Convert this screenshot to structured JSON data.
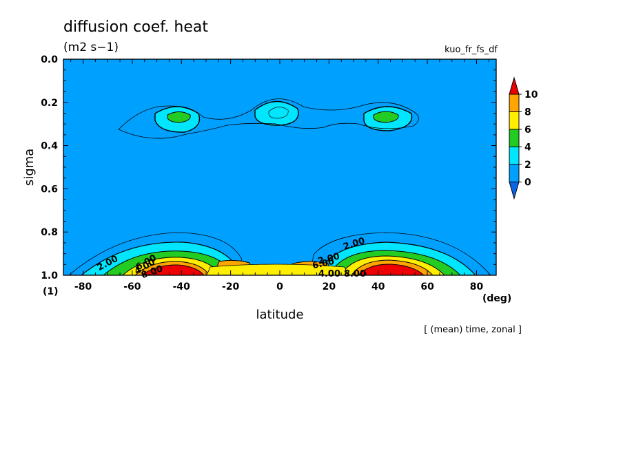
{
  "chart_data": {
    "type": "heatmap",
    "title": "diffusion coef. heat",
    "subtitle": "(m2 s−1)",
    "variable": "kuo_fr_fs_df",
    "xlabel": "latitude",
    "x_unit": "(deg)",
    "ylabel": "sigma",
    "y_extra_label": "(1)",
    "note": "[ (mean) time, zonal ]",
    "xlim": [
      -88,
      88
    ],
    "ylim": [
      1.0,
      0.0
    ],
    "y_inverted": true,
    "xticks": [
      "-80",
      "-60",
      "-40",
      "-20",
      "0",
      "20",
      "40",
      "60",
      "80"
    ],
    "yticks": [
      "0.0",
      "0.2",
      "0.4",
      "0.6",
      "0.8",
      "1.0"
    ],
    "colorbar": {
      "levels": [
        "0",
        "2",
        "4",
        "6",
        "8",
        "10"
      ],
      "colors": [
        "#0a64e6",
        "#00a0ff",
        "#00e6ff",
        "#22cc22",
        "#ffee00",
        "#ffa500",
        "#ee0000"
      ]
    },
    "contour_labels": [
      "2.00",
      "2.00",
      "2.00",
      "6.00",
      "4.00",
      "8.00",
      "6.00",
      "4.00",
      "8.00"
    ],
    "features": [
      {
        "lat": -45,
        "sigma": 0.27,
        "peak": 5
      },
      {
        "lat": 0,
        "sigma": 0.24,
        "peak": 3
      },
      {
        "lat": 45,
        "sigma": 0.27,
        "peak": 5
      },
      {
        "lat": -45,
        "sigma": 0.98,
        "peak": 10
      },
      {
        "lat": 47,
        "sigma": 0.98,
        "peak": 10
      },
      {
        "lat": -22,
        "sigma": 0.97,
        "peak": 7
      },
      {
        "lat": 5,
        "sigma": 0.97,
        "peak": 7
      }
    ]
  }
}
